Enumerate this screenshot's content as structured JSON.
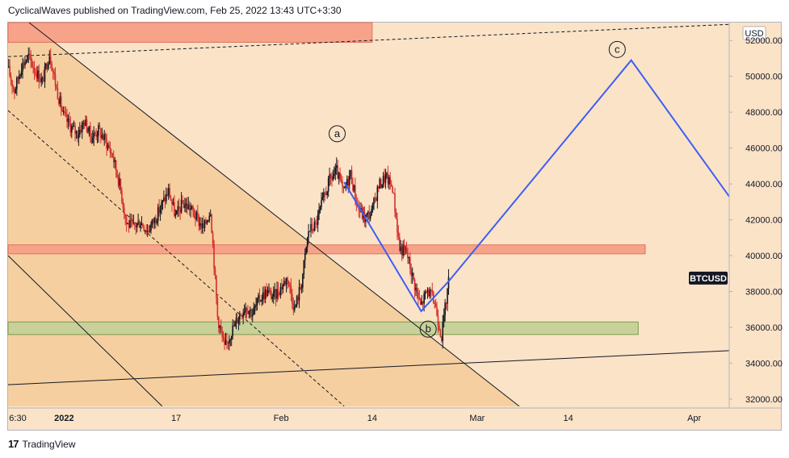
{
  "header": {
    "publish_info": "CyclicalWaves published on TradingView.com, Feb 25, 2022 13:43 UTC+3:30"
  },
  "footer": {
    "logo_glyph": "17",
    "brand": "TradingView"
  },
  "colors": {
    "background": "#fbe3c8",
    "shaded_region": "#f6cfa0",
    "resistance_zone": "#f7a38a",
    "support_zone": "#c9d19a",
    "wave_path": "#3d5ef5",
    "candle_up": "#131722",
    "candle_down": "#d32f2f"
  },
  "chart_data": {
    "type": "candlestick",
    "symbol": "BTCUSD",
    "currency": "USD",
    "y_axis": {
      "min": 31500,
      "max": 53000,
      "ticks": [
        32000,
        34000,
        36000,
        38000,
        40000,
        42000,
        44000,
        46000,
        48000,
        50000,
        52000
      ]
    },
    "y_tick_labels": [
      "32000.00",
      "34000.00",
      "36000.00",
      "38000.00",
      "40000.00",
      "42000.00",
      "44000.00",
      "46000.00",
      "48000.00",
      "50000.00",
      "52000.00"
    ],
    "x_axis": {
      "start": "2021-12-24",
      "end": "2022-04-06"
    },
    "x_ticks": [
      {
        "date": "2021-12-24",
        "label": "6:30"
      },
      {
        "date": "2022-01-01",
        "label": "2022"
      },
      {
        "date": "2022-01-17",
        "label": "17"
      },
      {
        "date": "2022-02-01",
        "label": "Feb"
      },
      {
        "date": "2022-02-14",
        "label": "14"
      },
      {
        "date": "2022-03-01",
        "label": "Mar"
      },
      {
        "date": "2022-03-14",
        "label": "14"
      },
      {
        "date": "2022-04-01",
        "label": "Apr"
      }
    ],
    "price_label": {
      "text": "BTCUSD",
      "value": 38750
    },
    "price_path": [
      [
        "2021-12-24",
        50500
      ],
      [
        "2021-12-25",
        49200
      ],
      [
        "2021-12-26",
        50600
      ],
      [
        "2021-12-27",
        51100
      ],
      [
        "2021-12-28",
        50300
      ],
      [
        "2021-12-29",
        49700
      ],
      [
        "2021-12-30",
        51300
      ],
      [
        "2021-12-31",
        49300
      ],
      [
        "2022-01-01",
        47800
      ],
      [
        "2022-01-02",
        47200
      ],
      [
        "2022-01-03",
        46800
      ],
      [
        "2022-01-04",
        47500
      ],
      [
        "2022-01-05",
        46600
      ],
      [
        "2022-01-06",
        47000
      ],
      [
        "2022-01-07",
        46400
      ],
      [
        "2022-01-08",
        45600
      ],
      [
        "2022-01-09",
        44000
      ],
      [
        "2022-01-10",
        41800
      ],
      [
        "2022-01-11",
        41600
      ],
      [
        "2022-01-12",
        41900
      ],
      [
        "2022-01-13",
        41400
      ],
      [
        "2022-01-14",
        42000
      ],
      [
        "2022-01-15",
        42800
      ],
      [
        "2022-01-16",
        43600
      ],
      [
        "2022-01-17",
        42200
      ],
      [
        "2022-01-18",
        42900
      ],
      [
        "2022-01-19",
        42700
      ],
      [
        "2022-01-20",
        42100
      ],
      [
        "2022-01-21",
        41500
      ],
      [
        "2022-01-22",
        42600
      ],
      [
        "2022-01-23",
        36600
      ],
      [
        "2022-01-24",
        34800
      ],
      [
        "2022-01-25",
        35800
      ],
      [
        "2022-01-26",
        36600
      ],
      [
        "2022-01-27",
        37200
      ],
      [
        "2022-01-28",
        36800
      ],
      [
        "2022-01-29",
        37600
      ],
      [
        "2022-01-30",
        38000
      ],
      [
        "2022-01-31",
        37700
      ],
      [
        "2022-02-01",
        38200
      ],
      [
        "2022-02-02",
        38800
      ],
      [
        "2022-02-03",
        37000
      ],
      [
        "2022-02-04",
        38500
      ],
      [
        "2022-02-05",
        41400
      ],
      [
        "2022-02-06",
        41700
      ],
      [
        "2022-02-07",
        43000
      ],
      [
        "2022-02-08",
        44200
      ],
      [
        "2022-02-09",
        44700
      ],
      [
        "2022-02-10",
        43500
      ],
      [
        "2022-02-11",
        44600
      ],
      [
        "2022-02-12",
        42700
      ],
      [
        "2022-02-13",
        42100
      ],
      [
        "2022-02-14",
        42400
      ],
      [
        "2022-02-15",
        43900
      ],
      [
        "2022-02-16",
        44400
      ],
      [
        "2022-02-17",
        43800
      ],
      [
        "2022-02-18",
        40400
      ],
      [
        "2022-02-19",
        40200
      ],
      [
        "2022-02-20",
        38600
      ],
      [
        "2022-02-21",
        37200
      ],
      [
        "2022-02-22",
        38100
      ],
      [
        "2022-02-23",
        37400
      ],
      [
        "2022-02-24",
        35500
      ],
      [
        "2022-02-25",
        38600
      ]
    ],
    "wave_labels": [
      {
        "label": "a",
        "date": "2022-02-09",
        "value": 46800
      },
      {
        "label": "b",
        "date": "2022-02-22",
        "value": 35900
      },
      {
        "label": "c",
        "date": "2022-03-21",
        "value": 51500
      }
    ],
    "projection_path": [
      [
        "2022-02-10",
        44100
      ],
      [
        "2022-02-21",
        36900
      ],
      [
        "2022-02-25",
        38600
      ],
      [
        "2022-03-23",
        50900
      ],
      [
        "2022-04-06",
        43300
      ]
    ],
    "zones": [
      {
        "name": "top-resistance",
        "date_from": "2021-12-24",
        "date_to": "2022-02-14",
        "value_low": 51900,
        "value_high": 53000
      },
      {
        "name": "resistance",
        "date_from": "2021-12-24",
        "date_to": "2022-03-25",
        "value_low": 40100,
        "value_high": 40600
      },
      {
        "name": "support",
        "date_from": "2021-12-24",
        "date_to": "2022-03-24",
        "value_low": 35600,
        "value_high": 36300
      }
    ],
    "trendlines": [
      {
        "name": "upper-channel",
        "style": "solid",
        "p1": [
          "2021-12-27",
          53000
        ],
        "p2": [
          "2022-03-07",
          31600
        ]
      },
      {
        "name": "channel-mid",
        "style": "dashed",
        "p1": [
          "2021-12-24",
          48100
        ],
        "p2": [
          "2022-02-10",
          31600
        ]
      },
      {
        "name": "lower-channel",
        "style": "solid",
        "p1": [
          "2021-12-24",
          40000
        ],
        "p2": [
          "2022-01-15",
          31600
        ]
      },
      {
        "name": "top-dashed",
        "style": "dashed",
        "p1": [
          "2021-12-24",
          51100
        ],
        "p2": [
          "2022-04-06",
          52900
        ]
      },
      {
        "name": "bottom-trend",
        "style": "solid",
        "p1": [
          "2021-12-24",
          32800
        ],
        "p2": [
          "2022-04-06",
          34700
        ]
      }
    ],
    "shaded_region": {
      "name": "channel-shading",
      "points": [
        [
          "2021-12-24",
          53000
        ],
        [
          "2021-12-27",
          53000
        ],
        [
          "2022-03-07",
          31600
        ],
        [
          "2021-12-24",
          31600
        ]
      ]
    }
  }
}
